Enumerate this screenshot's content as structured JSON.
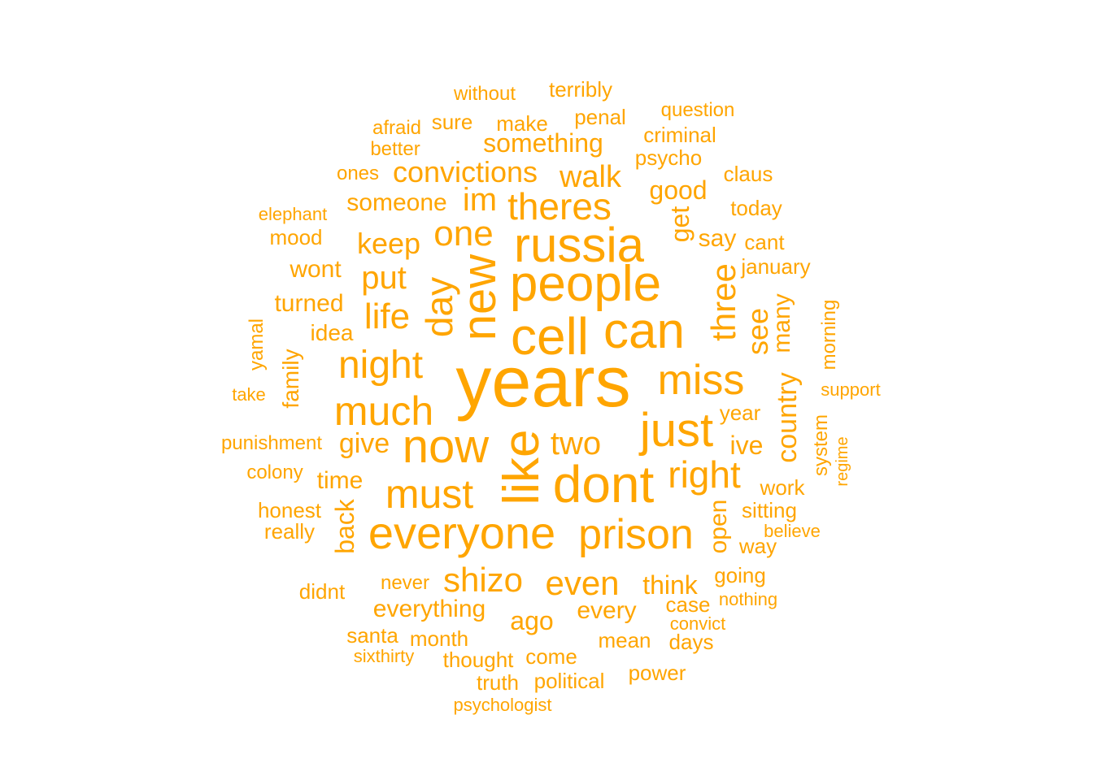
{
  "word_cloud": {
    "color": "#FFA500",
    "words": [
      "years",
      "cell",
      "can",
      "people",
      "russia",
      "new",
      "like",
      "dont",
      "now",
      "everyone",
      "prison",
      "just",
      "miss",
      "night",
      "much",
      "must",
      "day",
      "one",
      "theres",
      "three",
      "right",
      "even",
      "shizo",
      "life",
      "put",
      "two",
      "keep",
      "im",
      "walk",
      "convictions",
      "something",
      "see",
      "many",
      "country",
      "get",
      "good",
      "someone",
      "give",
      "ive",
      "time",
      "back",
      "open",
      "everything",
      "think",
      "every",
      "ago",
      "wont",
      "turned",
      "idea",
      "family",
      "yamal",
      "morning",
      "system",
      "say",
      "cant",
      "january",
      "terribly",
      "without",
      "penal",
      "question",
      "sure",
      "make",
      "criminal",
      "afraid",
      "better",
      "psycho",
      "claus",
      "ones",
      "today",
      "elephant",
      "mood",
      "take",
      "support",
      "regime",
      "punishment",
      "colony",
      "year",
      "work",
      "honest",
      "sitting",
      "really",
      "believe",
      "way",
      "going",
      "nothing",
      "didnt",
      "never",
      "case",
      "convict",
      "santa",
      "month",
      "mean",
      "days",
      "sixthirty",
      "thought",
      "come",
      "truth",
      "political",
      "power",
      "psychologist"
    ]
  }
}
